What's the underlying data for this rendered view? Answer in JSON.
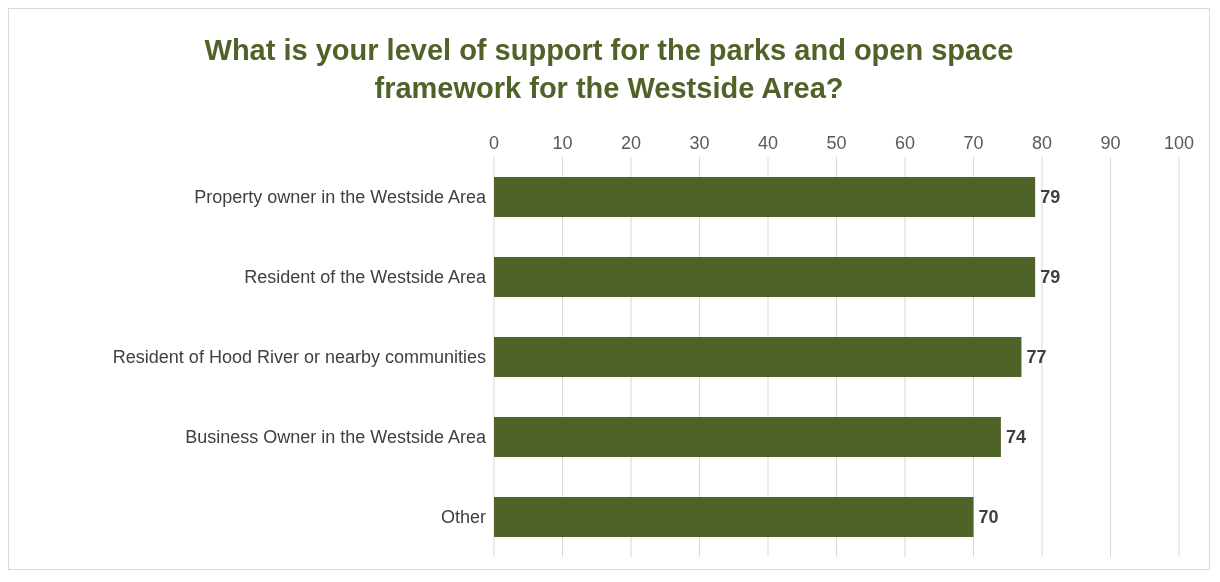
{
  "chart_data": {
    "type": "bar",
    "orientation": "horizontal",
    "title": "What is your level of support for the parks and open space framework for the Westside Area?",
    "categories": [
      "Property owner in the Westside Area",
      "Resident of the Westside Area",
      "Resident of Hood River or nearby communities",
      "Business Owner in the Westside Area",
      "Other"
    ],
    "values": [
      79,
      79,
      77,
      74,
      70
    ],
    "color": "#4f6228",
    "xlim": [
      0,
      100
    ],
    "xticks": [
      0,
      10,
      20,
      30,
      40,
      50,
      60,
      70,
      80,
      90,
      100
    ],
    "grid": "x",
    "data_labels": true
  }
}
